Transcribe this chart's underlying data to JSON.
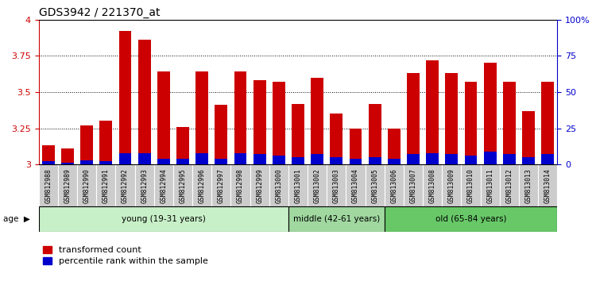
{
  "title": "GDS3942 / 221370_at",
  "samples": [
    "GSM812988",
    "GSM812989",
    "GSM812990",
    "GSM812991",
    "GSM812992",
    "GSM812993",
    "GSM812994",
    "GSM812995",
    "GSM812996",
    "GSM812997",
    "GSM812998",
    "GSM812999",
    "GSM813000",
    "GSM813001",
    "GSM813002",
    "GSM813003",
    "GSM813004",
    "GSM813005",
    "GSM813006",
    "GSM813007",
    "GSM813008",
    "GSM813009",
    "GSM813010",
    "GSM813011",
    "GSM813012",
    "GSM813013",
    "GSM813014"
  ],
  "red_values": [
    3.13,
    3.11,
    3.27,
    3.3,
    3.92,
    3.86,
    3.64,
    3.26,
    3.64,
    3.41,
    3.64,
    3.58,
    3.57,
    3.42,
    3.6,
    3.35,
    3.25,
    3.42,
    3.25,
    3.63,
    3.72,
    3.63,
    3.57,
    3.7,
    3.57,
    3.37,
    3.57
  ],
  "blue_values": [
    0.02,
    0.01,
    0.03,
    0.02,
    0.08,
    0.08,
    0.04,
    0.04,
    0.08,
    0.04,
    0.08,
    0.07,
    0.06,
    0.05,
    0.07,
    0.05,
    0.04,
    0.05,
    0.04,
    0.07,
    0.08,
    0.07,
    0.06,
    0.09,
    0.07,
    0.05,
    0.07
  ],
  "groups": [
    {
      "label": "young (19-31 years)",
      "start": 0,
      "end": 13,
      "color": "#c8f0c8"
    },
    {
      "label": "middle (42-61 years)",
      "start": 13,
      "end": 18,
      "color": "#a0d8a0"
    },
    {
      "label": "old (65-84 years)",
      "start": 18,
      "end": 27,
      "color": "#68c868"
    }
  ],
  "ymin": 3.0,
  "ymax": 4.0,
  "y_ticks_left": [
    3.0,
    3.25,
    3.5,
    3.75,
    4.0
  ],
  "y_ticks_right": [
    0,
    25,
    50,
    75,
    100
  ],
  "bar_color_red": "#cc0000",
  "bar_color_blue": "#0000cc",
  "bar_width": 0.65,
  "tick_label_color_left": "#cc0000",
  "tick_label_color_right": "#0000cc",
  "legend_red": "transformed count",
  "legend_blue": "percentile rank within the sample",
  "cell_bg": "#cccccc",
  "cell_border": "#ffffff"
}
